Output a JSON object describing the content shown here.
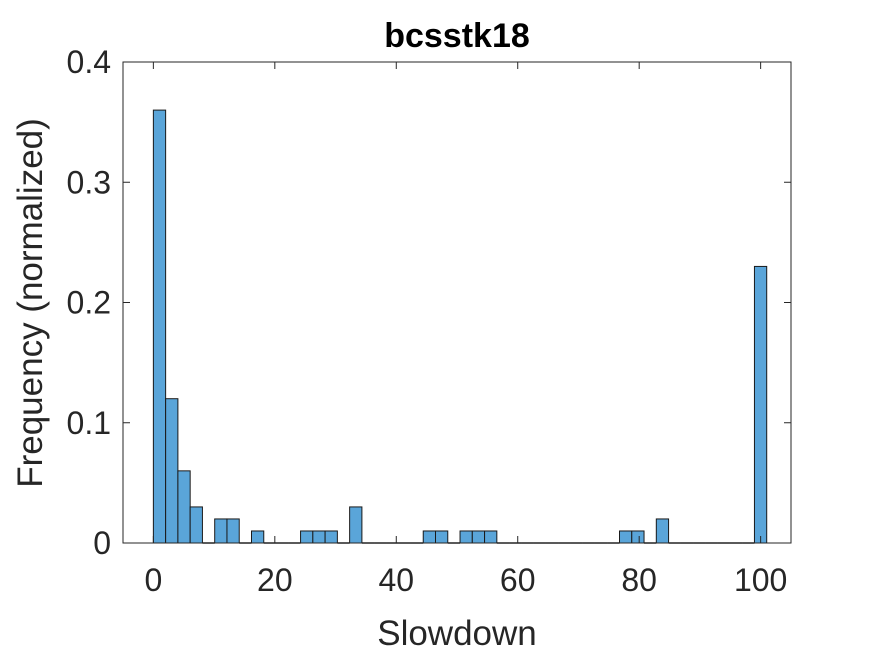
{
  "chart_data": {
    "type": "bar",
    "title": "bcsstk18",
    "xlabel": "Slowdown",
    "ylabel": "Frequency (normalized)",
    "xlim": [
      -5,
      105
    ],
    "ylim": [
      0,
      0.4
    ],
    "xticks": [
      0,
      20,
      40,
      60,
      80,
      100
    ],
    "yticks": [
      0,
      0.1,
      0.2,
      0.3,
      0.4
    ],
    "xtick_labels": [
      "0",
      "20",
      "40",
      "60",
      "80",
      "100"
    ],
    "ytick_labels": [
      "0",
      "0.1",
      "0.2",
      "0.3",
      "0.4"
    ],
    "bin_start": 0,
    "bin_width": 2.02,
    "values": [
      0.36,
      0.12,
      0.06,
      0.03,
      0,
      0.02,
      0.02,
      0,
      0.01,
      0,
      0,
      0,
      0.01,
      0.01,
      0.01,
      0,
      0.03,
      0,
      0,
      0,
      0,
      0,
      0.01,
      0.01,
      0,
      0.01,
      0.01,
      0.01,
      0,
      0,
      0,
      0,
      0,
      0,
      0,
      0,
      0,
      0,
      0.01,
      0.01,
      0,
      0.02,
      0,
      0,
      0,
      0,
      0,
      0,
      0,
      0.23
    ],
    "grid": false,
    "bar_color": "#5aa5d9",
    "edge_color": "#1a1a1a"
  }
}
